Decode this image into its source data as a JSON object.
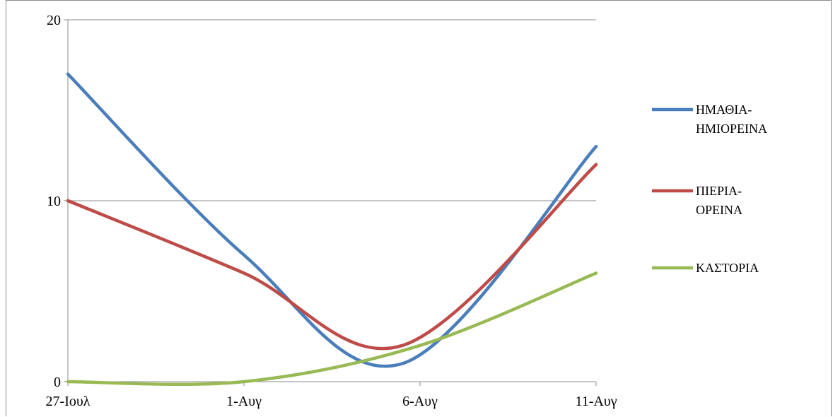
{
  "chart_data": {
    "type": "line",
    "title": "",
    "xlabel": "",
    "ylabel": "",
    "categories": [
      "27-Ιουλ",
      "1-Αυγ",
      "6-Αυγ",
      "11-Αυγ"
    ],
    "ylim": [
      0,
      20
    ],
    "yticks": [
      0,
      10,
      20
    ],
    "grid": true,
    "smooth": true,
    "legend_position": "right",
    "series": [
      {
        "name_lines": [
          "ΗΜΑΘΙΑ-",
          "ΗΜΙΟΡΕΙΝΑ"
        ],
        "color": "#4a7ebb",
        "points": [
          [
            0,
            17
          ],
          [
            1,
            7
          ],
          [
            1.9,
            1
          ],
          [
            3,
            13
          ]
        ]
      },
      {
        "name_lines": [
          "ΠΙΕΡΙΑ-",
          "ΟΡΕΙΝΑ"
        ],
        "color": "#be4b48",
        "points": [
          [
            0,
            10
          ],
          [
            1,
            6
          ],
          [
            1.9,
            2
          ],
          [
            3,
            12
          ]
        ]
      },
      {
        "name_lines": [
          "ΚΑΣΤΟΡΙΑ"
        ],
        "color": "#98b954",
        "points": [
          [
            0,
            0
          ],
          [
            1,
            0
          ],
          [
            2,
            2
          ],
          [
            3,
            6
          ]
        ]
      }
    ]
  }
}
